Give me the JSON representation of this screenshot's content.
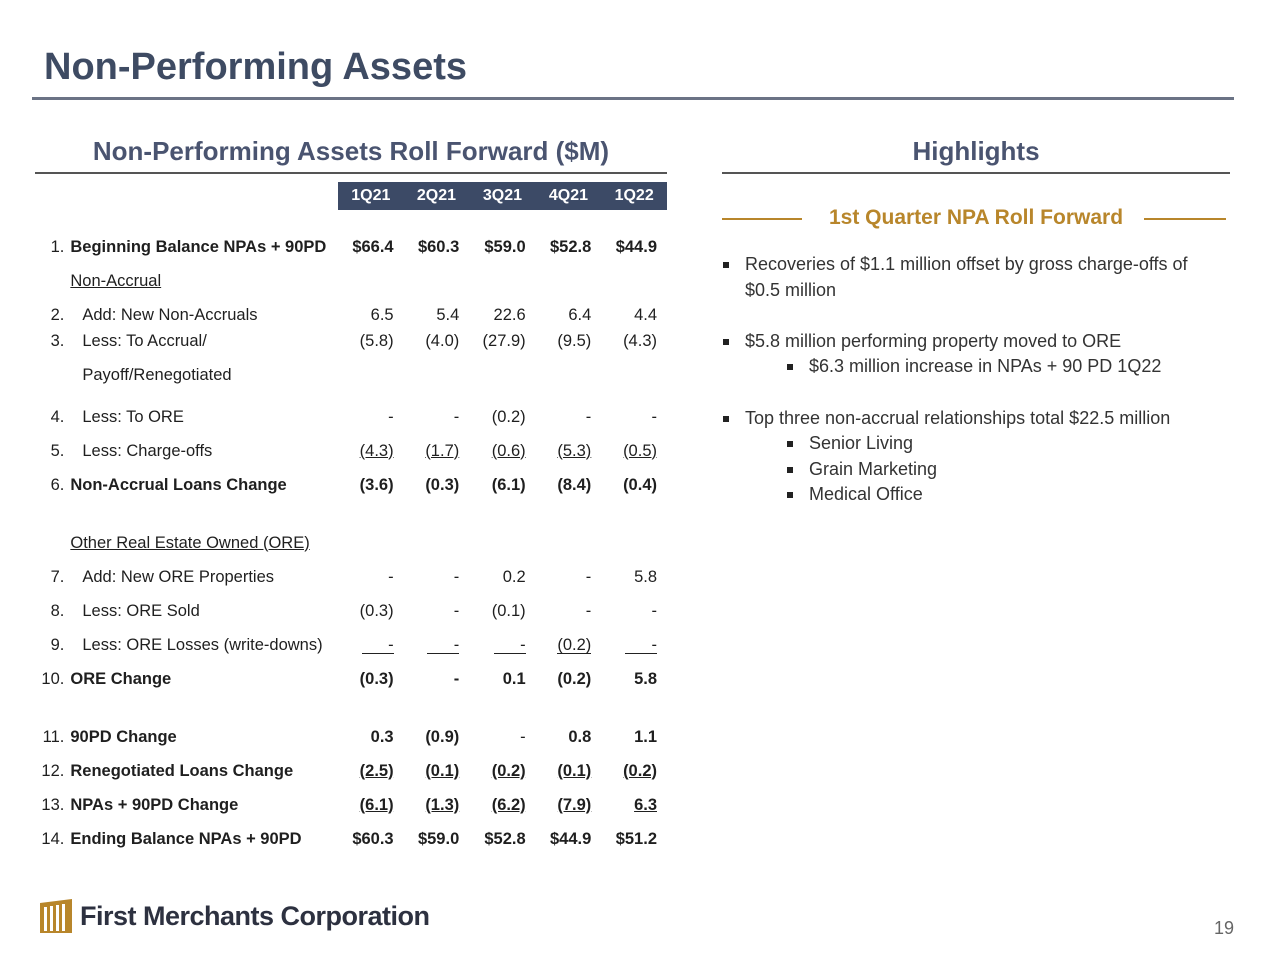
{
  "title": "Non-Performing Assets",
  "left_section_title": "Non-Performing Assets Roll Forward ($M)",
  "right_section_title": "Highlights",
  "table": {
    "quarters": [
      "1Q21",
      "2Q21",
      "3Q21",
      "4Q21",
      "1Q22"
    ],
    "rows": {
      "r1": {
        "num": "1.",
        "label": "Beginning Balance NPAs + 90PD",
        "values": [
          "$66.4",
          "$60.3",
          "$59.0",
          "$52.8",
          "$44.9"
        ]
      },
      "nonaccrual_header": "Non-Accrual",
      "r2": {
        "num": "2.",
        "label": "Add: New Non-Accruals",
        "values": [
          "6.5",
          "5.4",
          "22.6",
          "6.4",
          "4.4"
        ]
      },
      "r3": {
        "num": "3.",
        "label": "Less:  To Accrual/",
        "label2": "Payoff/Renegotiated",
        "values": [
          "(5.8)",
          "(4.0)",
          "(27.9)",
          "(9.5)",
          "(4.3)"
        ]
      },
      "r4": {
        "num": "4.",
        "label": "Less:  To ORE",
        "values": [
          "-",
          "-",
          "(0.2)",
          "-",
          "-"
        ]
      },
      "r5": {
        "num": "5.",
        "label": "Less:  Charge-offs",
        "values": [
          "(4.3)",
          "(1.7)",
          "(0.6)",
          "(5.3)",
          "(0.5)"
        ]
      },
      "r6": {
        "num": "6.",
        "label": "Non-Accrual Loans Change",
        "values": [
          "(3.6)",
          "(0.3)",
          "(6.1)",
          "(8.4)",
          "(0.4)"
        ]
      },
      "ore_header": "Other Real Estate Owned (ORE)",
      "r7": {
        "num": "7.",
        "label": "Add:  New ORE Properties",
        "values": [
          "-",
          "-",
          "0.2",
          "-",
          "5.8"
        ]
      },
      "r8": {
        "num": "8.",
        "label": "Less: ORE Sold",
        "values": [
          "(0.3)",
          "-",
          "(0.1)",
          "-",
          "-"
        ]
      },
      "r9": {
        "num": "9.",
        "label": "Less: ORE Losses (write-downs)",
        "values": [
          "-",
          "-",
          "-",
          "(0.2)",
          "-"
        ]
      },
      "r10": {
        "num": "10.",
        "label": "ORE Change",
        "values": [
          "(0.3)",
          "-",
          "0.1",
          "(0.2)",
          "5.8"
        ]
      },
      "r11": {
        "num": "11.",
        "label": "90PD Change",
        "values": [
          "0.3",
          "(0.9)",
          "-",
          "0.8",
          "1.1"
        ]
      },
      "r12": {
        "num": "12.",
        "label": "Renegotiated Loans Change",
        "values": [
          "(2.5)",
          "(0.1)",
          "(0.2)",
          "(0.1)",
          "(0.2)"
        ]
      },
      "r13": {
        "num": "13.",
        "label": "NPAs + 90PD Change",
        "values": [
          "(6.1)",
          "(1.3)",
          "(6.2)",
          "(7.9)",
          "6.3"
        ]
      },
      "r14": {
        "num": "14.",
        "label": "Ending Balance NPAs + 90PD",
        "values": [
          "$60.3",
          "$59.0",
          "$52.8",
          "$44.9",
          "$51.2"
        ]
      }
    }
  },
  "highlights": {
    "subtitle": "1st Quarter NPA Roll Forward",
    "b1": "Recoveries of $1.1 million offset by gross charge-offs of",
    "b1b": "$0.5 million",
    "b2": "$5.8 million performing property moved to ORE",
    "b2a": "$6.3 million increase in NPAs + 90 PD 1Q22",
    "b3": "Top three non-accrual relationships total $22.5 million",
    "b3a": "Senior Living",
    "b3b": "Grain Marketing",
    "b3c": "Medical Office"
  },
  "footer": {
    "company": "First Merchants Corporation",
    "page_number": "19"
  },
  "colors": {
    "title": "#3e4b63",
    "header_fill": "#3c4a66",
    "accent_gold": "#b8862b"
  }
}
